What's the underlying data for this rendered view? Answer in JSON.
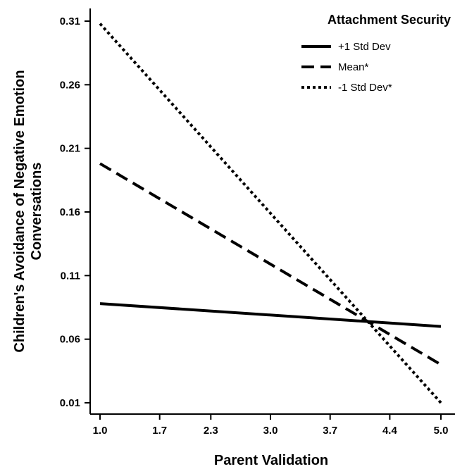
{
  "chart_data": {
    "type": "line",
    "xlabel": "Parent Validation",
    "ylabel_lines": [
      "Children's Avoidance of Negative Emotion",
      "Conversations"
    ],
    "x_ticks": [
      "1.0",
      "1.7",
      "2.3",
      "3.0",
      "3.7",
      "4.4",
      "5.0"
    ],
    "y_ticks": [
      "0.31",
      "0.26",
      "0.21",
      "0.16",
      "0.11",
      "0.06",
      "0.01"
    ],
    "xlim": [
      1.0,
      5.0
    ],
    "ylim": [
      0.01,
      0.31
    ],
    "legend": {
      "title": "Attachment Security",
      "placement": "top-right"
    },
    "series": [
      {
        "name": "+1 Std Dev",
        "style": "solid",
        "x": [
          1.0,
          5.0
        ],
        "y": [
          0.088,
          0.07
        ]
      },
      {
        "name": "Mean*",
        "style": "dashed",
        "x": [
          1.0,
          5.0
        ],
        "y": [
          0.198,
          0.04
        ]
      },
      {
        "name": "-1 Std Dev*",
        "style": "dotted",
        "x": [
          1.0,
          5.0
        ],
        "y": [
          0.308,
          0.01
        ]
      }
    ],
    "grid": false,
    "color": "#000000"
  }
}
